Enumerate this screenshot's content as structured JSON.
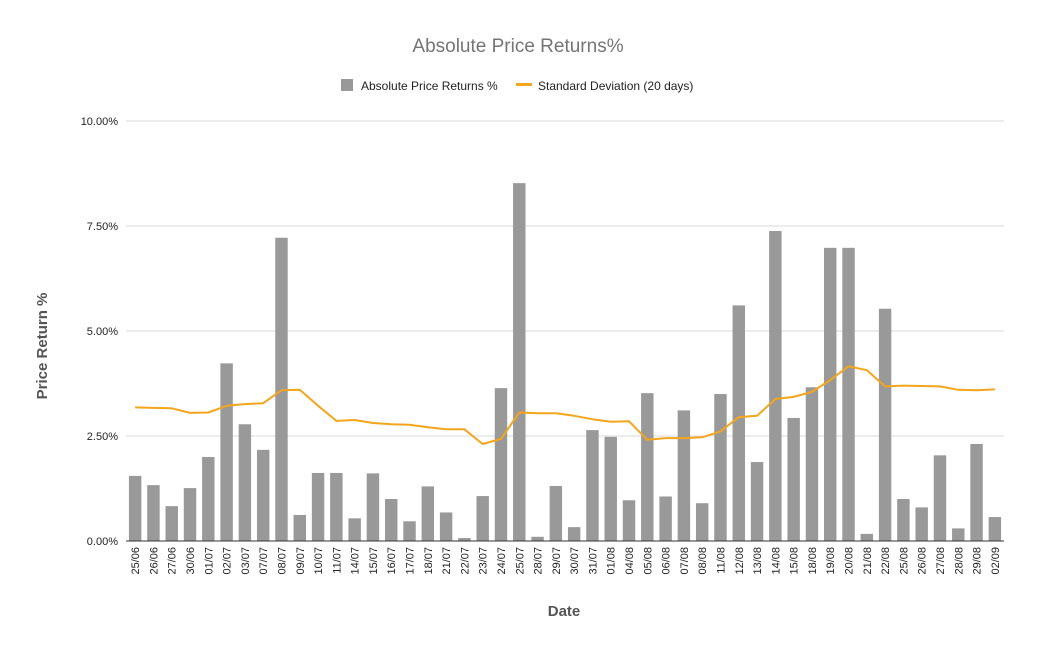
{
  "chart_data": {
    "type": "bar",
    "title": "Absolute Price Returns%",
    "xlabel": "Date",
    "ylabel": "Price Return %",
    "ylim": [
      0,
      10
    ],
    "yticks": [
      "0.00%",
      "2.50%",
      "5.00%",
      "7.50%",
      "10.00%"
    ],
    "grid": true,
    "legend_position": "top",
    "categories": [
      "25/06",
      "26/06",
      "27/06",
      "30/06",
      "01/07",
      "02/07",
      "03/07",
      "07/07",
      "08/07",
      "09/07",
      "10/07",
      "11/07",
      "14/07",
      "15/07",
      "16/07",
      "17/07",
      "18/07",
      "21/07",
      "22/07",
      "23/07",
      "24/07",
      "25/07",
      "28/07",
      "29/07",
      "30/07",
      "31/07",
      "01/08",
      "04/08",
      "05/08",
      "06/08",
      "07/08",
      "08/08",
      "11/08",
      "12/08",
      "13/08",
      "14/08",
      "15/08",
      "18/08",
      "19/08",
      "20/08",
      "21/08",
      "22/08",
      "25/08",
      "26/08",
      "27/08",
      "28/08",
      "29/08",
      "02/09"
    ],
    "series": [
      {
        "name": "Absolute Price Returns %",
        "kind": "bar",
        "color": "#999999",
        "values": [
          1.55,
          1.33,
          0.83,
          1.26,
          2.0,
          4.23,
          2.78,
          2.17,
          7.22,
          0.62,
          1.62,
          1.62,
          0.54,
          1.61,
          1.0,
          0.47,
          1.3,
          0.68,
          0.07,
          1.07,
          3.64,
          8.52,
          0.1,
          1.31,
          0.33,
          2.64,
          2.48,
          0.97,
          3.52,
          1.06,
          3.11,
          0.9,
          3.5,
          5.61,
          1.88,
          7.38,
          2.93,
          3.66,
          6.98,
          6.98,
          0.17,
          5.53,
          1.0,
          0.8,
          2.04,
          0.3,
          2.31,
          0.57
        ]
      },
      {
        "name": "Standard Deviation (20 days)",
        "kind": "line",
        "color": "#f4a51c",
        "values": [
          3.18,
          3.17,
          3.16,
          3.05,
          3.06,
          3.22,
          3.26,
          3.28,
          3.59,
          3.6,
          3.22,
          2.86,
          2.88,
          2.81,
          2.78,
          2.77,
          2.71,
          2.66,
          2.66,
          2.31,
          2.43,
          3.06,
          3.04,
          3.04,
          2.98,
          2.9,
          2.84,
          2.85,
          2.41,
          2.45,
          2.45,
          2.47,
          2.61,
          2.95,
          2.98,
          3.38,
          3.43,
          3.55,
          3.83,
          4.16,
          4.07,
          3.68,
          3.7,
          3.69,
          3.68,
          3.6,
          3.59,
          3.61
        ]
      }
    ]
  }
}
